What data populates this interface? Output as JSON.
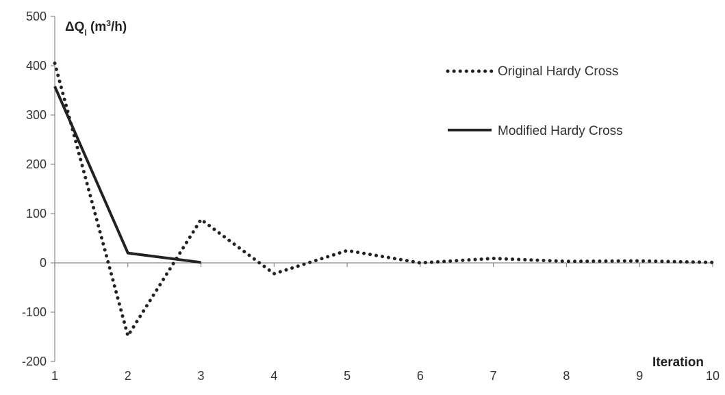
{
  "chart_data": {
    "type": "line",
    "x": [
      1,
      2,
      3,
      4,
      5,
      6,
      7,
      8,
      9,
      10
    ],
    "series": [
      {
        "name": "Original Hardy Cross",
        "style": "dotted",
        "color": "#222222",
        "values": [
          405,
          -148,
          88,
          -22,
          25,
          0,
          9,
          3,
          4,
          1
        ]
      },
      {
        "name": "Modified Hardy Cross",
        "style": "solid",
        "color": "#222222",
        "values": [
          358,
          20,
          1,
          null,
          null,
          null,
          null,
          null,
          null,
          null
        ]
      }
    ],
    "ylabel": {
      "prefix": "ΔQ",
      "sub": "l",
      "unit_open": " (m",
      "sup": "3",
      "unit_close": "/h)"
    },
    "xlabel": "Iteration",
    "ylim": [
      -200,
      500
    ],
    "yticks": [
      "-200",
      "-100",
      "0",
      "100",
      "200",
      "300",
      "400",
      "500"
    ],
    "xticks": [
      "1",
      "2",
      "3",
      "4",
      "5",
      "6",
      "7",
      "8",
      "9",
      "10"
    ],
    "grid": false,
    "legend": "top-right"
  }
}
